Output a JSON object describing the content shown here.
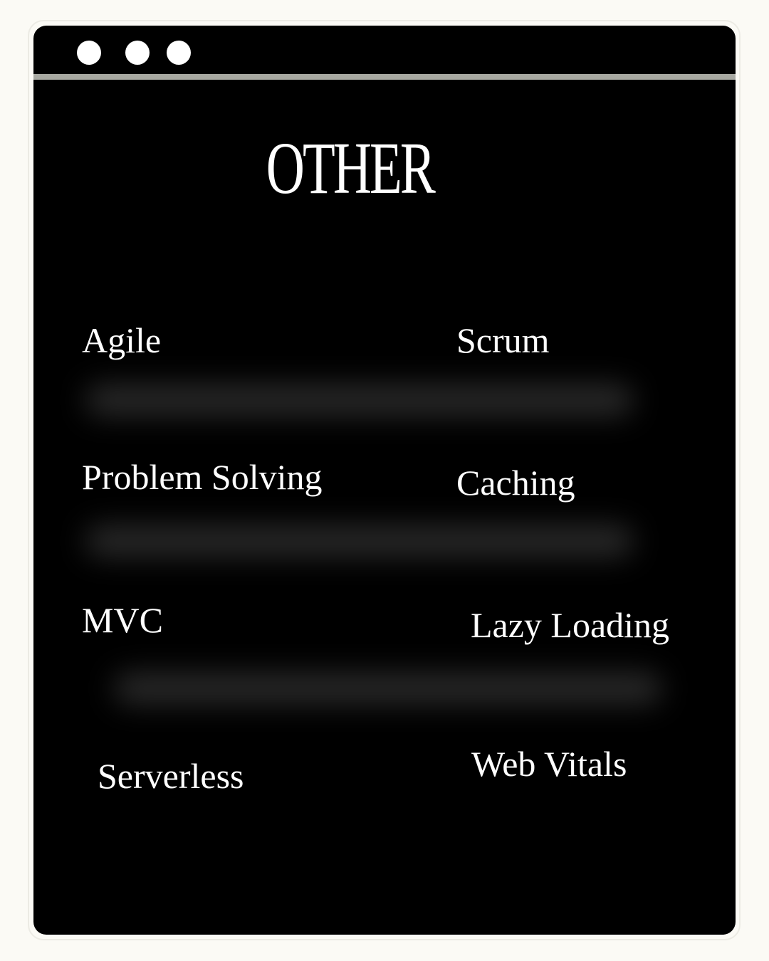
{
  "window": {
    "controls": [
      "window-dot",
      "window-dot",
      "window-dot"
    ]
  },
  "title": "OTHER",
  "items": [
    {
      "label": "Agile"
    },
    {
      "label": "Scrum"
    },
    {
      "label": "Problem Solving"
    },
    {
      "label": "Caching"
    },
    {
      "label": "MVC"
    },
    {
      "label": "Lazy Loading"
    },
    {
      "label": "Serverless"
    },
    {
      "label": "Web Vitals"
    }
  ],
  "colors": {
    "page_background": "#fbfaf5",
    "window_background": "#000000",
    "divider": "#a7a8a1",
    "text": "#ffffff"
  }
}
